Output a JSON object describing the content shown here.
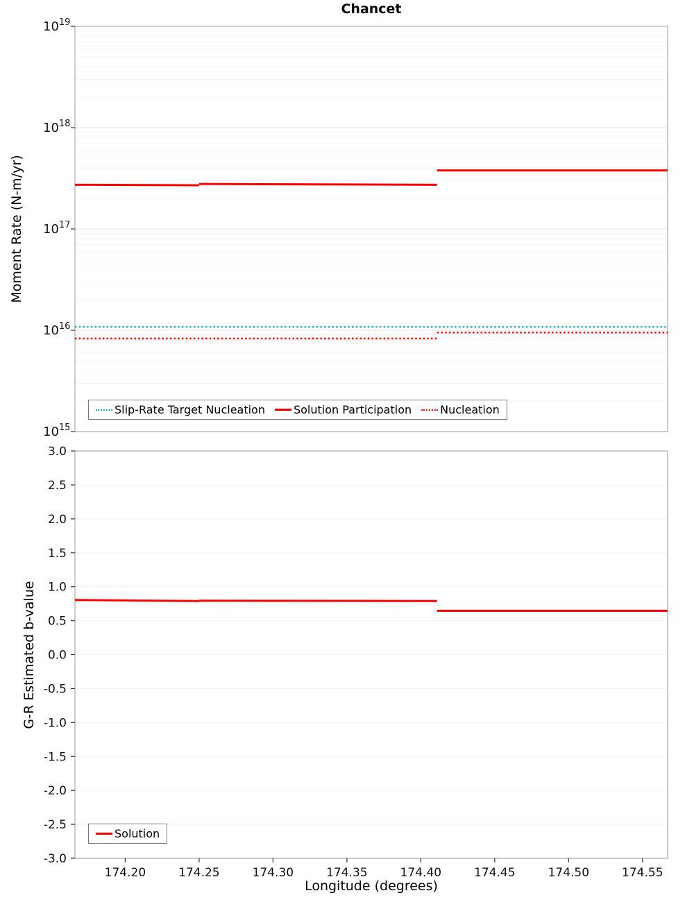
{
  "chart_data": [
    {
      "type": "line",
      "title": "Chancet",
      "ylabel": "Moment Rate (N-m/yr)",
      "xlabel": "",
      "yscale": "log",
      "ylim": [
        1000000000000000.0,
        1e+19
      ],
      "xlim": [
        174.166,
        174.567
      ],
      "ytick_exponents": [
        15,
        16,
        17,
        18,
        19
      ],
      "grid": "horizontal-light",
      "legend_position": "bottom-inside",
      "series": [
        {
          "name": "Slip-Rate Target Nucleation",
          "color": "#1fb3b5",
          "style": "dotted",
          "segments": [
            [
              [
                174.166,
                1.08e+16
              ],
              [
                174.567,
                1.08e+16
              ]
            ]
          ]
        },
        {
          "name": "Solution Participation",
          "color": "#ff0000",
          "style": "solid",
          "segments": [
            [
              [
                174.166,
                2.73e+17
              ],
              [
                174.25,
                2.7e+17
              ]
            ],
            [
              [
                174.25,
                2.78e+17
              ],
              [
                174.411,
                2.73e+17
              ]
            ],
            [
              [
                174.411,
                3.78e+17
              ],
              [
                174.567,
                3.78e+17
              ]
            ]
          ]
        },
        {
          "name": "Nucleation",
          "color": "#ff0000",
          "style": "dotted",
          "segments": [
            [
              [
                174.166,
                8300000000000000.0
              ],
              [
                174.411,
                8300000000000000.0
              ]
            ],
            [
              [
                174.411,
                9500000000000000.0
              ],
              [
                174.567,
                9500000000000000.0
              ]
            ]
          ]
        }
      ]
    },
    {
      "type": "line",
      "title": "",
      "ylabel": "G-R Estimated b-value",
      "xlabel": "Longitude (degrees)",
      "yscale": "linear",
      "ylim": [
        -3.0,
        3.0
      ],
      "xlim": [
        174.166,
        174.567
      ],
      "yticks": [
        -3.0,
        -2.5,
        -2.0,
        -1.5,
        -1.0,
        -0.5,
        0.0,
        0.5,
        1.0,
        1.5,
        2.0,
        2.5,
        3.0
      ],
      "xticks": [
        174.2,
        174.25,
        174.3,
        174.35,
        174.4,
        174.45,
        174.5,
        174.55
      ],
      "grid": "horizontal-light",
      "legend_position": "bottom-left-inside",
      "series": [
        {
          "name": "Solution",
          "color": "#ff0000",
          "style": "solid",
          "segments": [
            [
              [
                174.166,
                0.805
              ],
              [
                174.25,
                0.79
              ]
            ],
            [
              [
                174.25,
                0.795
              ],
              [
                174.411,
                0.79
              ]
            ],
            [
              [
                174.411,
                0.645
              ],
              [
                174.567,
                0.645
              ]
            ]
          ]
        }
      ]
    }
  ]
}
